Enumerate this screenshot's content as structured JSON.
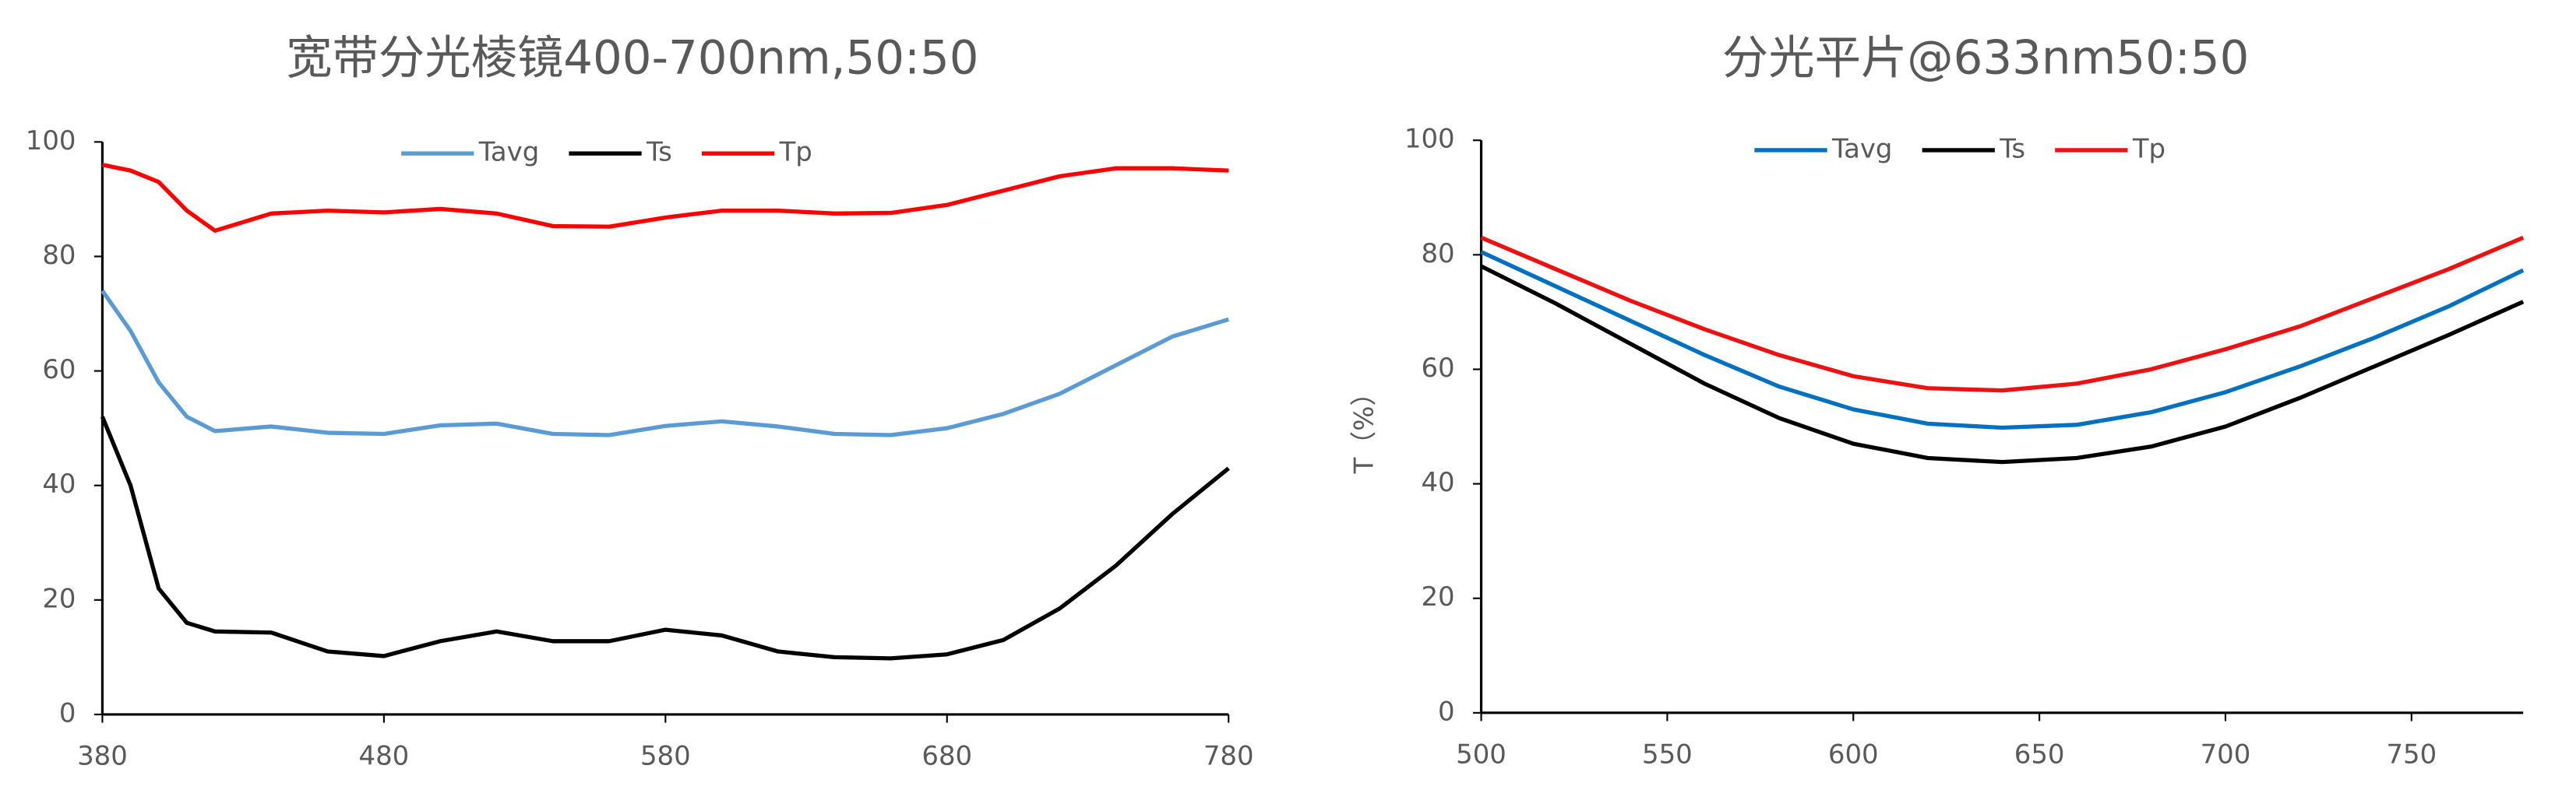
{
  "chart_data": [
    {
      "type": "line",
      "title": "宽带分光棱镜400-700nm,50:50",
      "x": [
        380,
        390,
        400,
        410,
        420,
        440,
        460,
        480,
        500,
        520,
        540,
        560,
        580,
        600,
        620,
        640,
        660,
        680,
        700,
        720,
        740,
        760,
        780
      ],
      "series": [
        {
          "name": "Tavg",
          "color": "#5b9bd5",
          "values": [
            74,
            67,
            58,
            52,
            49.5,
            50.3,
            49.2,
            49,
            50.5,
            50.8,
            49,
            48.8,
            50.4,
            51.2,
            50.3,
            49,
            48.8,
            50,
            52.5,
            56,
            61,
            66,
            69
          ]
        },
        {
          "name": "Ts",
          "color": "#000000",
          "values": [
            52,
            40,
            22,
            16,
            14.5,
            14.3,
            11,
            10.2,
            12.8,
            14.5,
            12.8,
            12.8,
            14.8,
            13.8,
            11,
            10,
            9.8,
            10.5,
            13,
            18.5,
            26,
            35,
            43
          ]
        },
        {
          "name": "Tp",
          "color": "#ff0000",
          "values": [
            96,
            95,
            93,
            88,
            84.5,
            87.5,
            88,
            87.7,
            88.3,
            87.5,
            85.3,
            85.2,
            86.8,
            88,
            88,
            87.5,
            87.6,
            89,
            91.5,
            94,
            95.4,
            95.4,
            95
          ]
        }
      ],
      "xlim": [
        380,
        780
      ],
      "xticks": [
        380,
        480,
        580,
        680,
        780
      ],
      "ylim": [
        0,
        100
      ],
      "yticks": [
        0,
        20,
        40,
        60,
        80,
        100
      ],
      "legend": "top"
    },
    {
      "type": "line",
      "title": "分光平片@633nm50:50",
      "y_label": "T（%）",
      "x": [
        500,
        520,
        540,
        560,
        580,
        600,
        620,
        640,
        660,
        680,
        700,
        720,
        740,
        760,
        780
      ],
      "series": [
        {
          "name": "Tavg",
          "color": "#0070c0",
          "values": [
            80.5,
            74.5,
            68.5,
            62.5,
            57,
            53,
            50.5,
            49.8,
            50.3,
            52.5,
            56,
            60.5,
            65.5,
            71,
            77.3
          ]
        },
        {
          "name": "Ts",
          "color": "#000000",
          "values": [
            78,
            71.5,
            64.5,
            57.5,
            51.5,
            47,
            44.5,
            43.8,
            44.5,
            46.5,
            50,
            55,
            60.5,
            66,
            71.8
          ]
        },
        {
          "name": "Tp",
          "color": "#ee1111",
          "values": [
            83,
            77.5,
            72,
            67,
            62.5,
            58.8,
            56.7,
            56.3,
            57.5,
            60,
            63.5,
            67.5,
            72.5,
            77.5,
            83
          ]
        }
      ],
      "xlim": [
        500,
        780
      ],
      "xticks": [
        500,
        550,
        600,
        650,
        700,
        750
      ],
      "ylim": [
        0,
        100
      ],
      "yticks": [
        0,
        20,
        40,
        60,
        80,
        100
      ],
      "legend": "top"
    }
  ]
}
